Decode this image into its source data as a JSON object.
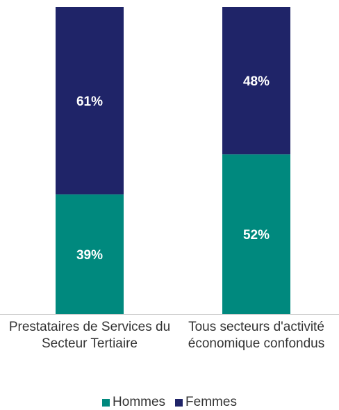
{
  "chart_data": {
    "type": "stacked-bar",
    "categories": [
      "Prestataires de Services du Secteur Tertiaire",
      "Tous secteurs d'activité économique confondus"
    ],
    "series": [
      {
        "name": "Hommes",
        "color": "#00897e",
        "values": [
          39,
          52
        ],
        "value_labels": [
          "39%",
          "52%"
        ]
      },
      {
        "name": "Femmes",
        "color": "#1f2468",
        "values": [
          61,
          48
        ],
        "value_labels": [
          "61%",
          "48%"
        ]
      }
    ],
    "ylim": [
      0,
      100
    ]
  }
}
